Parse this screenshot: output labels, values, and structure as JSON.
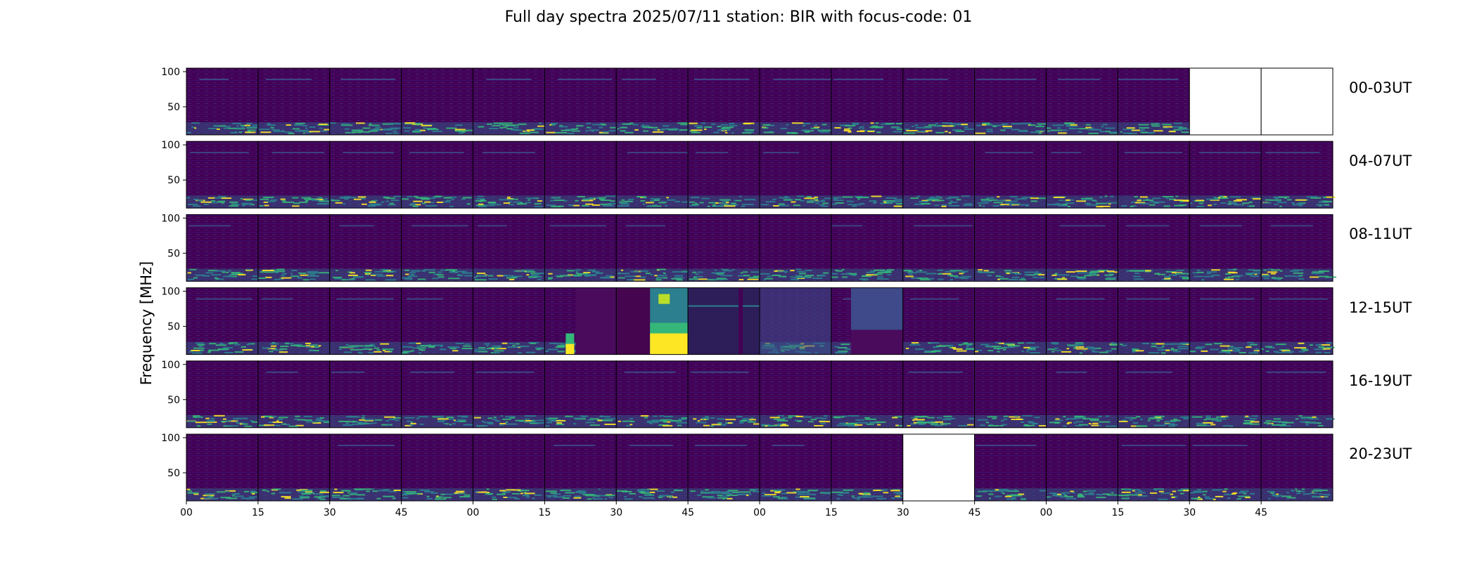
{
  "chart_data": {
    "type": "heatmap",
    "title": "Full day spectra 2025/07/11 station: BIR with focus-code: 01",
    "ylabel": "Frequency [MHz]",
    "ylim": [
      10,
      105
    ],
    "y_ticks": [
      50,
      100
    ],
    "x_ticks": [
      "00",
      "15",
      "30",
      "45",
      "00",
      "15",
      "30",
      "45",
      "00",
      "15",
      "30",
      "45",
      "00",
      "15",
      "30",
      "45"
    ],
    "colormap": "viridis",
    "rows": [
      {
        "label": "00-03UT",
        "panels": [
          "bg",
          "bg",
          "bg",
          "bg",
          "bg",
          "bg",
          "bg",
          "bg",
          "bg",
          "bg",
          "bg",
          "bg",
          "bg",
          "bg",
          "empty",
          "empty"
        ]
      },
      {
        "label": "04-07UT",
        "panels": [
          "bg",
          "bg",
          "bg",
          "bg",
          "bg",
          "bg",
          "bg",
          "bg",
          "bg",
          "bg",
          "bg",
          "bg",
          "bg",
          "bg",
          "bg",
          "bg"
        ]
      },
      {
        "label": "08-11UT",
        "panels": [
          "bg",
          "bg",
          "bg",
          "bg",
          "bg",
          "bg",
          "bg",
          "bg",
          "bg",
          "bg",
          "bg",
          "bg",
          "bg",
          "bg",
          "bg",
          "bg"
        ]
      },
      {
        "label": "12-15UT",
        "panels": [
          "bg",
          "bg",
          "bg",
          "bg",
          "bg",
          "burst_a",
          "burst_b",
          "burst_c",
          "burst_d",
          "burst_e",
          "bg",
          "bg",
          "bg",
          "bg",
          "bg",
          "bg"
        ]
      },
      {
        "label": "16-19UT",
        "panels": [
          "bg",
          "bg",
          "bg",
          "bg",
          "bg",
          "bg",
          "bg",
          "bg",
          "bg",
          "bg",
          "bg",
          "bg",
          "bg",
          "bg",
          "bg",
          "bg"
        ]
      },
      {
        "label": "20-23UT",
        "panels": [
          "bg",
          "bg",
          "bg",
          "bg",
          "bg",
          "bg",
          "bg",
          "bg",
          "bg",
          "bg",
          "empty",
          "bg",
          "bg",
          "bg",
          "bg",
          "bg"
        ]
      }
    ]
  },
  "colors": {
    "background": "#440154",
    "dark": "#3b0f70",
    "teal": "#2c7f8e",
    "green": "#35b779",
    "yellow": "#fde725"
  }
}
